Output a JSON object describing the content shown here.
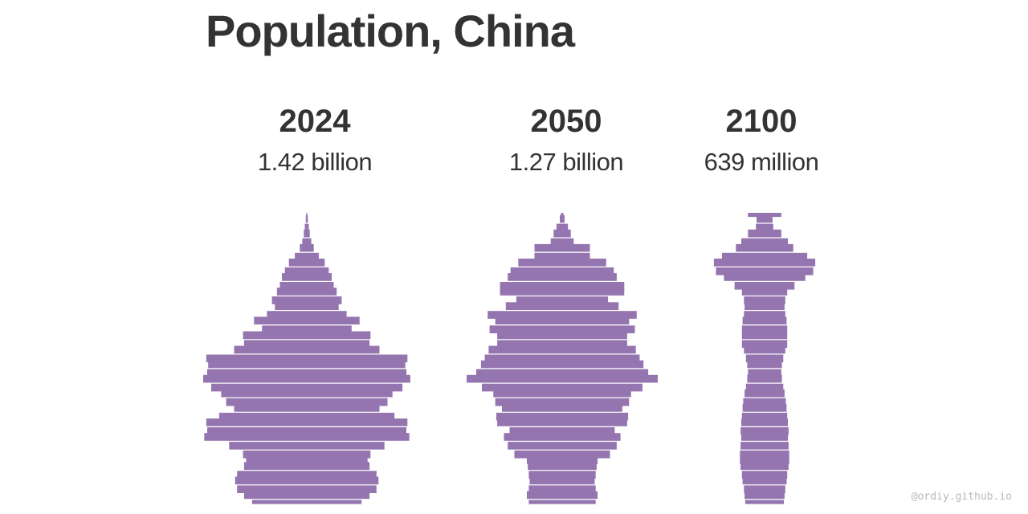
{
  "title": "Population, China",
  "credit": "@ordiy.github.io",
  "colors": {
    "fill": "#9575b0",
    "text": "#333333"
  },
  "chart_data": {
    "type": "area",
    "description_kind": "population-pyramid-silhouette",
    "age_axis": "bottom=age 0, top=age 100",
    "ages": [
      0,
      3,
      5,
      8,
      10,
      13,
      15,
      17,
      20,
      23,
      25,
      28,
      30,
      33,
      35,
      38,
      40,
      43,
      45,
      48,
      50,
      53,
      55,
      58,
      60,
      63,
      65,
      68,
      70,
      73,
      75,
      78,
      80,
      83,
      85,
      88,
      90,
      93,
      95,
      98,
      100
    ],
    "series": [
      {
        "year": "2024",
        "total_label": "1.42 billion",
        "relative_width": [
          0.55,
          0.63,
          0.7,
          0.72,
          0.7,
          0.63,
          0.61,
          0.64,
          0.78,
          1.03,
          1.0,
          1.01,
          0.88,
          0.73,
          0.81,
          0.86,
          0.96,
          1.04,
          1.0,
          0.99,
          1.01,
          0.73,
          0.63,
          0.64,
          0.45,
          0.53,
          0.4,
          0.32,
          0.35,
          0.3,
          0.27,
          0.25,
          0.22,
          0.18,
          0.12,
          0.07,
          0.045,
          0.03,
          0.02,
          0.01,
          0.005
        ]
      },
      {
        "year": "2050",
        "total_label": "1.27 billion",
        "relative_width": [
          0.35,
          0.37,
          0.35,
          0.34,
          0.35,
          0.36,
          0.37,
          0.5,
          0.57,
          0.61,
          0.55,
          0.68,
          0.69,
          0.63,
          0.7,
          0.72,
          0.84,
          1.0,
          0.9,
          0.85,
          0.81,
          0.77,
          0.68,
          0.68,
          0.76,
          0.7,
          0.78,
          0.59,
          0.48,
          0.65,
          0.65,
          0.57,
          0.54,
          0.46,
          0.29,
          0.29,
          0.12,
          0.09,
          0.06,
          0.025,
          0.012
        ]
      },
      {
        "year": "2100",
        "total_label": "639 million",
        "relative_width": [
          0.29,
          0.3,
          0.31,
          0.33,
          0.34,
          0.36,
          0.37,
          0.37,
          0.36,
          0.35,
          0.36,
          0.35,
          0.34,
          0.33,
          0.32,
          0.3,
          0.28,
          0.26,
          0.25,
          0.26,
          0.28,
          0.31,
          0.34,
          0.34,
          0.34,
          0.33,
          0.31,
          0.3,
          0.31,
          0.34,
          0.45,
          0.61,
          0.73,
          0.76,
          0.64,
          0.43,
          0.35,
          0.25,
          0.13,
          0.12,
          0.25
        ]
      }
    ]
  }
}
